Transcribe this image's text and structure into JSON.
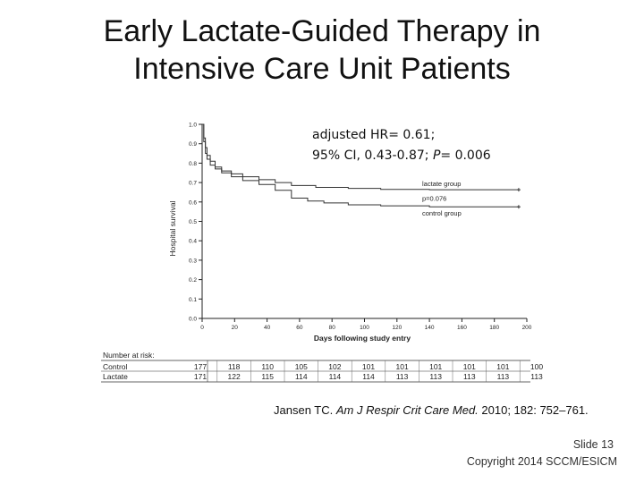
{
  "slide": {
    "title_line1": "Early Lactate-Guided Therapy in",
    "title_line2": "Intensive Care Unit Patients",
    "annotation_line1_a": "adjusted HR= 0.61;",
    "annotation_line2_a": "95% CI, 0.43-0.87; ",
    "annotation_line2_p": "P",
    "annotation_line2_b": "= 0.006",
    "citation_a": "Jansen TC. ",
    "citation_journal": "Am J Respir Crit Care Med.",
    "citation_b": " 2010; 182: 752–761.",
    "slide_number": "Slide 13",
    "copyright": "Copyright 2014 SCCM/ESICM"
  },
  "chart_data": {
    "type": "line",
    "xlabel": "Days following study entry",
    "ylabel": "Hospital survival",
    "xlim": [
      0,
      200
    ],
    "ylim": [
      0,
      1.0
    ],
    "x_ticks": [
      0,
      20,
      40,
      60,
      80,
      100,
      120,
      140,
      160,
      180,
      200
    ],
    "y_ticks": [
      0.0,
      0.1,
      0.2,
      0.3,
      0.4,
      0.5,
      0.6,
      0.7,
      0.8,
      0.9,
      1.0
    ],
    "y_tick_labels": [
      "0.0",
      "0.1",
      "0.2",
      "0.3",
      "0.4",
      "0.5",
      "0.6",
      "0.7",
      "0.8",
      "0.9",
      "1.0"
    ],
    "series": [
      {
        "name": "lactate group",
        "color": "#333333",
        "points": [
          [
            0,
            1.0
          ],
          [
            1,
            0.93
          ],
          [
            2,
            0.88
          ],
          [
            3,
            0.84
          ],
          [
            5,
            0.81
          ],
          [
            8,
            0.78
          ],
          [
            12,
            0.76
          ],
          [
            18,
            0.745
          ],
          [
            25,
            0.73
          ],
          [
            35,
            0.715
          ],
          [
            45,
            0.7
          ],
          [
            55,
            0.685
          ],
          [
            70,
            0.675
          ],
          [
            90,
            0.67
          ],
          [
            110,
            0.665
          ],
          [
            140,
            0.663
          ],
          [
            195,
            0.663
          ]
        ]
      },
      {
        "name": "control group",
        "color": "#333333",
        "points": [
          [
            0,
            1.0
          ],
          [
            1,
            0.91
          ],
          [
            2,
            0.85
          ],
          [
            3,
            0.82
          ],
          [
            5,
            0.79
          ],
          [
            8,
            0.77
          ],
          [
            12,
            0.75
          ],
          [
            18,
            0.73
          ],
          [
            25,
            0.71
          ],
          [
            35,
            0.69
          ],
          [
            45,
            0.66
          ],
          [
            55,
            0.62
          ],
          [
            65,
            0.605
          ],
          [
            75,
            0.595
          ],
          [
            90,
            0.585
          ],
          [
            110,
            0.58
          ],
          [
            140,
            0.575
          ],
          [
            195,
            0.575
          ]
        ]
      }
    ],
    "annotations": [
      "p=0.076"
    ],
    "risk_table": {
      "header": "Number at risk:",
      "rows": [
        {
          "label": "Control",
          "values": [
            "177",
            "118",
            "110",
            "105",
            "102",
            "101",
            "101",
            "101",
            "101",
            "101",
            "100"
          ]
        },
        {
          "label": "Lactate",
          "values": [
            "171",
            "122",
            "115",
            "114",
            "114",
            "114",
            "113",
            "113",
            "113",
            "113",
            "113"
          ]
        }
      ]
    },
    "grid": false,
    "legend": "inline-right"
  }
}
